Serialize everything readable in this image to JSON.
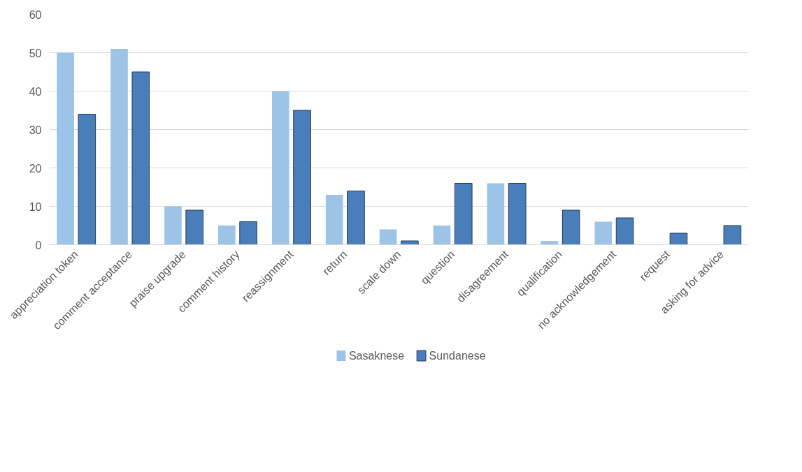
{
  "chart_data": {
    "type": "bar",
    "categories": [
      "appreciation token",
      "comment acceptance",
      "praise upgrade",
      "comment history",
      "reassignment",
      "return",
      "scale down",
      "question",
      "disagreement",
      "qualification",
      "no acknowledgement",
      "request",
      "asking for advice"
    ],
    "series": [
      {
        "name": "Sasaknese",
        "color": "#9dc3e6",
        "values": [
          50,
          51,
          10,
          5,
          40,
          13,
          4,
          5,
          16,
          1,
          6,
          0,
          0
        ]
      },
      {
        "name": "Sundanese",
        "color": "#4a7ebb",
        "values": [
          34,
          45,
          9,
          6,
          35,
          14,
          1,
          16,
          16,
          9,
          7,
          3,
          5
        ]
      }
    ],
    "ylim": [
      0,
      60
    ],
    "yticks": [
      0,
      10,
      20,
      30,
      40,
      50,
      60
    ],
    "grid": "y",
    "legend": "bottom"
  }
}
